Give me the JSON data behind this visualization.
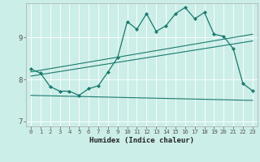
{
  "xlabel": "Humidex (Indice chaleur)",
  "bg_color": "#cceee8",
  "line_color": "#1a7a6e",
  "xlim": [
    -0.5,
    23.5
  ],
  "ylim": [
    6.88,
    9.82
  ],
  "yticks": [
    7,
    8,
    9
  ],
  "xticks": [
    0,
    1,
    2,
    3,
    4,
    5,
    6,
    7,
    8,
    9,
    10,
    11,
    12,
    13,
    14,
    15,
    16,
    17,
    18,
    19,
    20,
    21,
    22,
    23
  ],
  "main_x": [
    0,
    1,
    2,
    3,
    4,
    5,
    6,
    7,
    8,
    9,
    10,
    11,
    12,
    13,
    14,
    15,
    16,
    17,
    18,
    19,
    20,
    21,
    22,
    23
  ],
  "main_y": [
    8.25,
    8.15,
    7.83,
    7.72,
    7.72,
    7.62,
    7.78,
    7.85,
    8.18,
    8.52,
    9.38,
    9.2,
    9.57,
    9.15,
    9.28,
    9.57,
    9.72,
    9.45,
    9.6,
    9.08,
    9.03,
    8.73,
    7.9,
    7.73
  ],
  "upper_line1_x": [
    0,
    23
  ],
  "upper_line1_y": [
    8.18,
    9.08
  ],
  "upper_line2_x": [
    0,
    23
  ],
  "upper_line2_y": [
    8.08,
    8.92
  ],
  "lower_line_x": [
    0,
    23
  ],
  "lower_line_y": [
    7.62,
    7.5
  ]
}
